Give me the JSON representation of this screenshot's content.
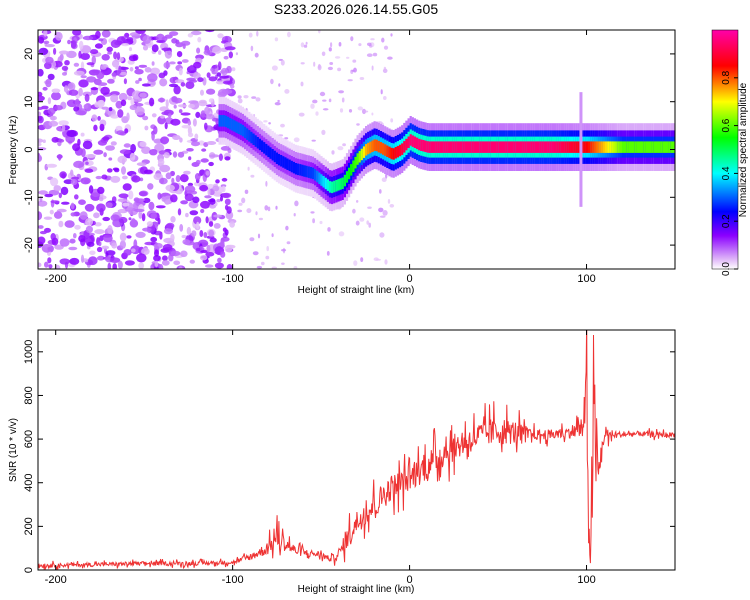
{
  "chart_data": [
    {
      "type": "heatmap",
      "title": "S233.2026.026.14.55.G05",
      "xlabel": "Height of straight line (km)",
      "ylabel": "Frequency (Hz)",
      "xlim": [
        -210,
        150
      ],
      "ylim": [
        -25,
        25
      ],
      "xticks": [
        -200,
        -100,
        0,
        100
      ],
      "yticks": [
        -20,
        -10,
        0,
        10,
        20
      ],
      "colorbar": {
        "label": "Normalized spectral amplitude",
        "range": [
          0.0,
          1.0
        ],
        "ticks": [
          "0.0",
          "0.2",
          "0.4",
          "0.6",
          "0.8"
        ],
        "colormap": [
          "#e8c8f8",
          "#8b00ff",
          "#0000ff",
          "#00ffff",
          "#00ff00",
          "#ffff00",
          "#ff0000",
          "#ff00ff"
        ]
      },
      "ridge": {
        "x": [
          -105,
          -95,
          -85,
          -75,
          -65,
          -55,
          -45,
          -38,
          -30,
          -25,
          -20,
          -15,
          -10,
          -5,
          0,
          5,
          10,
          20,
          40,
          60,
          80,
          100,
          120,
          150
        ],
        "y": [
          6,
          4,
          1,
          -2,
          -4,
          -5,
          -8,
          -7,
          -2,
          0,
          1,
          0,
          -1,
          0,
          2,
          1,
          0.5,
          0.5,
          0.5,
          0.5,
          0.5,
          0.5,
          0.5,
          0.5
        ],
        "amplitude": [
          0.3,
          0.3,
          0.25,
          0.25,
          0.25,
          0.28,
          0.45,
          0.5,
          0.6,
          0.75,
          0.8,
          0.8,
          0.85,
          0.9,
          0.95,
          0.95,
          0.95,
          0.95,
          0.95,
          0.95,
          0.95,
          0.85,
          0.6,
          0.6
        ]
      }
    },
    {
      "type": "line",
      "xlabel": "Height of straight line (km)",
      "ylabel": "SNR (10 * v/v)",
      "xlim": [
        -210,
        150
      ],
      "ylim": [
        0,
        1100
      ],
      "xticks": [
        -200,
        -100,
        0,
        100
      ],
      "yticks": [
        0,
        200,
        400,
        600,
        800,
        1000
      ],
      "color": "#ee3333",
      "series": [
        {
          "name": "SNR",
          "x": [
            -210,
            -180,
            -150,
            -120,
            -100,
            -90,
            -80,
            -75,
            -70,
            -65,
            -60,
            -50,
            -45,
            -40,
            -35,
            -30,
            -20,
            -10,
            0,
            10,
            20,
            30,
            40,
            50,
            60,
            70,
            80,
            90,
            98,
            100,
            101,
            102,
            104,
            106,
            110,
            120,
            130,
            140,
            150
          ],
          "y": [
            20,
            25,
            30,
            30,
            35,
            60,
            100,
            150,
            120,
            90,
            80,
            70,
            50,
            70,
            150,
            220,
            300,
            380,
            420,
            480,
            540,
            580,
            620,
            640,
            630,
            620,
            620,
            630,
            650,
            800,
            300,
            100,
            700,
            400,
            620,
            620,
            625,
            620,
            620
          ],
          "noise": [
            15,
            15,
            15,
            15,
            15,
            25,
            50,
            80,
            60,
            40,
            30,
            25,
            20,
            40,
            80,
            90,
            100,
            100,
            100,
            110,
            110,
            100,
            100,
            110,
            90,
            40,
            40,
            40,
            100,
            300,
            300,
            300,
            300,
            200,
            50,
            20,
            20,
            20,
            20
          ]
        }
      ]
    }
  ]
}
